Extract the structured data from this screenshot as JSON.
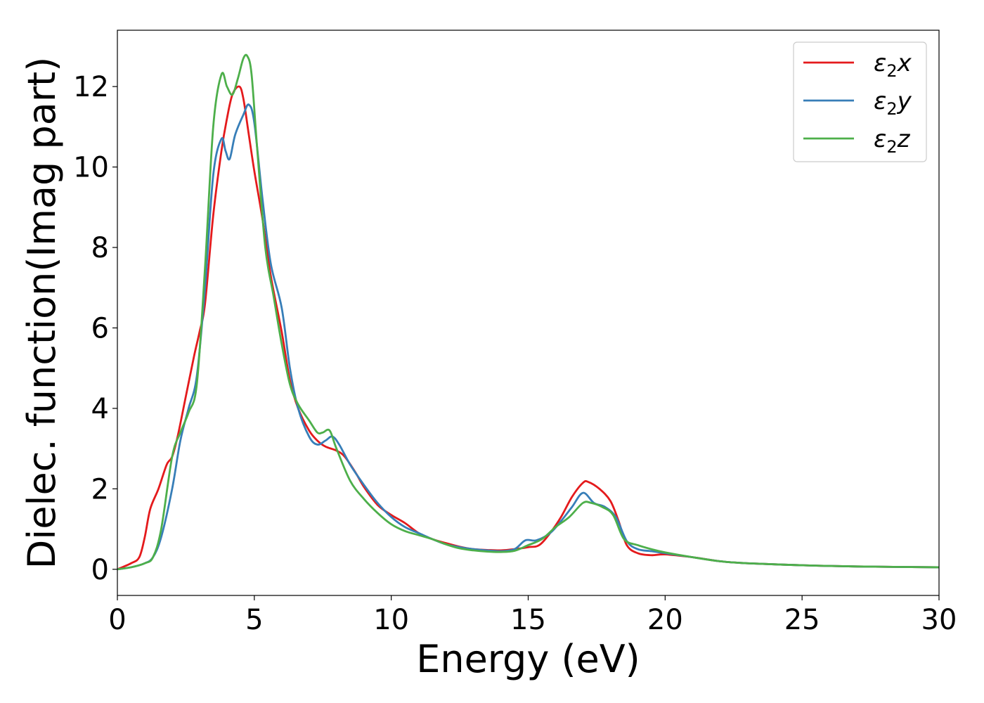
{
  "chart_data": {
    "type": "line",
    "title": "",
    "xlabel": "Energy (eV)",
    "ylabel": "Dielec. function(Imag part)",
    "xlim": [
      0,
      30
    ],
    "ylim": [
      -0.65,
      13.4
    ],
    "xticks": [
      0,
      5,
      10,
      15,
      20,
      25,
      30
    ],
    "yticks": [
      0,
      2,
      4,
      6,
      8,
      10,
      12
    ],
    "grid": false,
    "legend_position": "top-right",
    "series": [
      {
        "name": "ε₂x",
        "legend_base": "ε",
        "legend_sub": "2",
        "legend_suffix": "x",
        "color": "#e41a1c",
        "x": [
          0,
          0.5,
          0.8,
          1.0,
          1.2,
          1.5,
          1.8,
          2.0,
          2.2,
          2.5,
          2.8,
          3.0,
          3.2,
          3.5,
          3.8,
          4.0,
          4.2,
          4.45,
          4.6,
          4.8,
          5.0,
          5.3,
          5.6,
          6.0,
          6.3,
          6.6,
          7.0,
          7.3,
          7.6,
          8.0,
          8.3,
          8.7,
          9.0,
          9.5,
          10.0,
          10.5,
          11.0,
          11.5,
          12.0,
          12.5,
          13.0,
          13.5,
          14.0,
          14.5,
          15.0,
          15.4,
          15.8,
          16.2,
          16.6,
          17.0,
          17.2,
          17.6,
          18.0,
          18.3,
          18.6,
          19.0,
          19.5,
          20.0,
          21.0,
          22.0,
          23.0,
          25.0,
          27.0,
          30.0
        ],
        "y": [
          0.0,
          0.15,
          0.3,
          0.8,
          1.5,
          2.0,
          2.6,
          2.8,
          3.3,
          4.3,
          5.3,
          5.9,
          6.6,
          8.8,
          10.4,
          11.2,
          11.8,
          12.0,
          11.7,
          10.8,
          9.9,
          8.7,
          7.3,
          5.9,
          4.7,
          4.0,
          3.45,
          3.2,
          3.05,
          2.95,
          2.8,
          2.4,
          2.05,
          1.6,
          1.35,
          1.15,
          0.9,
          0.75,
          0.65,
          0.56,
          0.5,
          0.48,
          0.47,
          0.5,
          0.55,
          0.6,
          0.9,
          1.3,
          1.8,
          2.15,
          2.17,
          2.0,
          1.7,
          1.2,
          0.6,
          0.4,
          0.35,
          0.37,
          0.3,
          0.2,
          0.15,
          0.1,
          0.07,
          0.05
        ]
      },
      {
        "name": "ε₂y",
        "legend_base": "ε",
        "legend_sub": "2",
        "legend_suffix": "y",
        "color": "#377eb8",
        "x": [
          0,
          0.5,
          1.0,
          1.3,
          1.6,
          2.0,
          2.3,
          2.6,
          2.9,
          3.2,
          3.5,
          3.8,
          3.95,
          4.1,
          4.3,
          4.6,
          4.8,
          5.0,
          5.3,
          5.6,
          6.0,
          6.3,
          6.6,
          7.0,
          7.3,
          7.6,
          7.85,
          8.1,
          8.5,
          9.0,
          9.5,
          10.0,
          10.5,
          11.0,
          11.5,
          12.0,
          12.5,
          13.0,
          13.5,
          14.0,
          14.5,
          14.9,
          15.3,
          15.8,
          16.2,
          16.6,
          17.0,
          17.4,
          17.8,
          18.2,
          18.6,
          19.0,
          19.5,
          20.0,
          21.0,
          22.0,
          23.0,
          25.0,
          27.0,
          30.0
        ],
        "y": [
          0.0,
          0.05,
          0.15,
          0.3,
          0.8,
          2.0,
          3.2,
          4.0,
          4.8,
          7.0,
          9.8,
          10.7,
          10.4,
          10.2,
          10.8,
          11.3,
          11.55,
          11.1,
          9.2,
          7.6,
          6.5,
          5.0,
          4.0,
          3.3,
          3.1,
          3.2,
          3.3,
          3.1,
          2.6,
          2.1,
          1.65,
          1.3,
          1.05,
          0.9,
          0.75,
          0.62,
          0.55,
          0.5,
          0.47,
          0.45,
          0.5,
          0.72,
          0.72,
          0.9,
          1.2,
          1.55,
          1.9,
          1.65,
          1.55,
          1.3,
          0.7,
          0.5,
          0.45,
          0.4,
          0.3,
          0.2,
          0.15,
          0.1,
          0.07,
          0.05
        ]
      },
      {
        "name": "ε₂z",
        "legend_base": "ε",
        "legend_sub": "2",
        "legend_suffix": "z",
        "color": "#4daf4a",
        "x": [
          0,
          0.5,
          1.0,
          1.3,
          1.6,
          2.0,
          2.3,
          2.6,
          2.9,
          3.2,
          3.5,
          3.8,
          4.0,
          4.2,
          4.4,
          4.6,
          4.75,
          4.9,
          5.1,
          5.4,
          5.7,
          6.0,
          6.3,
          6.6,
          7.0,
          7.3,
          7.5,
          7.75,
          8.0,
          8.5,
          9.0,
          9.5,
          10.0,
          10.5,
          11.0,
          11.5,
          12.0,
          12.5,
          13.0,
          13.5,
          14.0,
          14.5,
          15.0,
          15.5,
          16.0,
          16.5,
          17.0,
          17.3,
          17.7,
          18.1,
          18.5,
          19.0,
          19.5,
          20.0,
          21.0,
          22.0,
          23.0,
          25.0,
          27.0,
          30.0
        ],
        "y": [
          0.0,
          0.05,
          0.15,
          0.3,
          1.0,
          2.8,
          3.4,
          3.9,
          4.6,
          7.5,
          11.0,
          12.3,
          12.0,
          11.8,
          12.2,
          12.7,
          12.75,
          12.3,
          10.5,
          8.0,
          6.8,
          5.6,
          4.6,
          4.1,
          3.7,
          3.4,
          3.4,
          3.45,
          3.0,
          2.2,
          1.75,
          1.4,
          1.12,
          0.95,
          0.85,
          0.75,
          0.62,
          0.52,
          0.47,
          0.44,
          0.43,
          0.46,
          0.6,
          0.75,
          1.05,
          1.3,
          1.65,
          1.65,
          1.55,
          1.35,
          0.75,
          0.6,
          0.5,
          0.42,
          0.3,
          0.2,
          0.15,
          0.1,
          0.07,
          0.05
        ]
      }
    ]
  }
}
